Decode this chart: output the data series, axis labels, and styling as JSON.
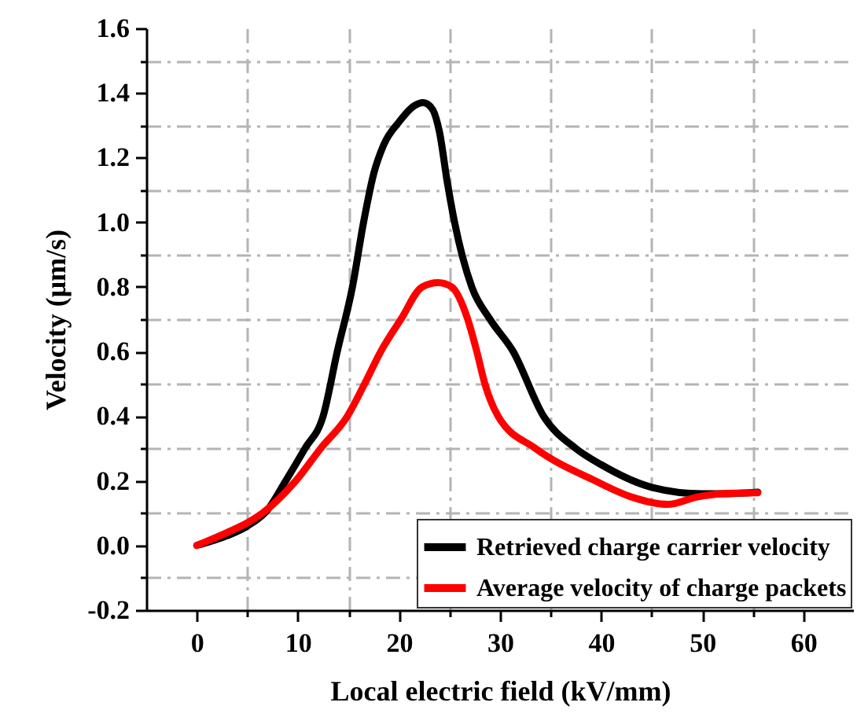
{
  "chart_data": {
    "type": "line",
    "xlabel": "Local electric field (kV/mm)",
    "ylabel": "Velocity (μm/s)",
    "xlim": [
      -5,
      65
    ],
    "ylim": [
      -0.2,
      1.6
    ],
    "xticks": [
      {
        "value": 5,
        "label": null
      },
      0,
      10,
      {
        "value": 15,
        "label": null
      },
      20,
      {
        "value": 25,
        "label": null
      },
      30,
      {
        "value": 35,
        "label": null
      },
      40,
      {
        "value": 45,
        "label": null
      },
      50,
      {
        "value": 55,
        "label": null
      },
      60
    ],
    "yticks": [
      -0.2,
      {
        "value": -0.1,
        "label": null
      },
      {
        "value": 0,
        "label": "0.0"
      },
      {
        "value": 0.1,
        "label": null
      },
      0.2,
      {
        "value": 0.3,
        "label": null
      },
      0.4,
      {
        "value": 0.5,
        "label": null
      },
      0.6,
      {
        "value": 0.7,
        "label": null
      },
      0.8,
      {
        "value": 0.9,
        "label": null
      },
      {
        "value": 1,
        "label": "1.0"
      },
      {
        "value": 1.1,
        "label": null
      },
      1.2,
      {
        "value": 1.3,
        "label": null
      },
      1.4,
      {
        "value": 1.5,
        "label": null
      },
      1.6
    ],
    "grid": true,
    "legend": "bottom right",
    "line_style": "solid",
    "marker": "none",
    "series": [
      {
        "name": "Retrieved charge carrier velocity",
        "color": "#000000",
        "x": [
          0,
          3,
          5,
          7,
          8.8,
          10.7,
          12.5,
          13.9,
          15.4,
          16.5,
          17.5,
          18.5,
          20,
          21.5,
          22.4,
          23.3,
          24,
          24.8,
          25.5,
          27.2,
          29,
          31.3,
          34.3,
          37.5,
          40,
          45,
          50,
          52,
          55.5
        ],
        "values": [
          0,
          0.03,
          0.06,
          0.11,
          0.2,
          0.3,
          0.4,
          0.6,
          0.8,
          1.0,
          1.15,
          1.24,
          1.31,
          1.36,
          1.37,
          1.35,
          1.28,
          1.12,
          1.0,
          0.8,
          0.7,
          0.6,
          0.4,
          0.3,
          0.25,
          0.18,
          0.16,
          0.16,
          0.165
        ]
      },
      {
        "name": "Average velocity of charge packets",
        "color": "#ff0000",
        "x": [
          0,
          3,
          5,
          6.5,
          9.8,
          12.25,
          14.9,
          16.6,
          18.2,
          20.2,
          22.3,
          23.9,
          25.2,
          26.8,
          27.7,
          28.5,
          29.8,
          33.5,
          39.4,
          43,
          46.6,
          49.5,
          52,
          55.5
        ],
        "values": [
          0,
          0.04,
          0.07,
          0.1,
          0.2,
          0.3,
          0.4,
          0.5,
          0.6,
          0.7,
          0.8,
          0.813,
          0.8,
          0.7,
          0.6,
          0.5,
          0.4,
          0.3,
          0.2,
          0.15,
          0.127,
          0.15,
          0.16,
          0.163
        ]
      }
    ]
  }
}
